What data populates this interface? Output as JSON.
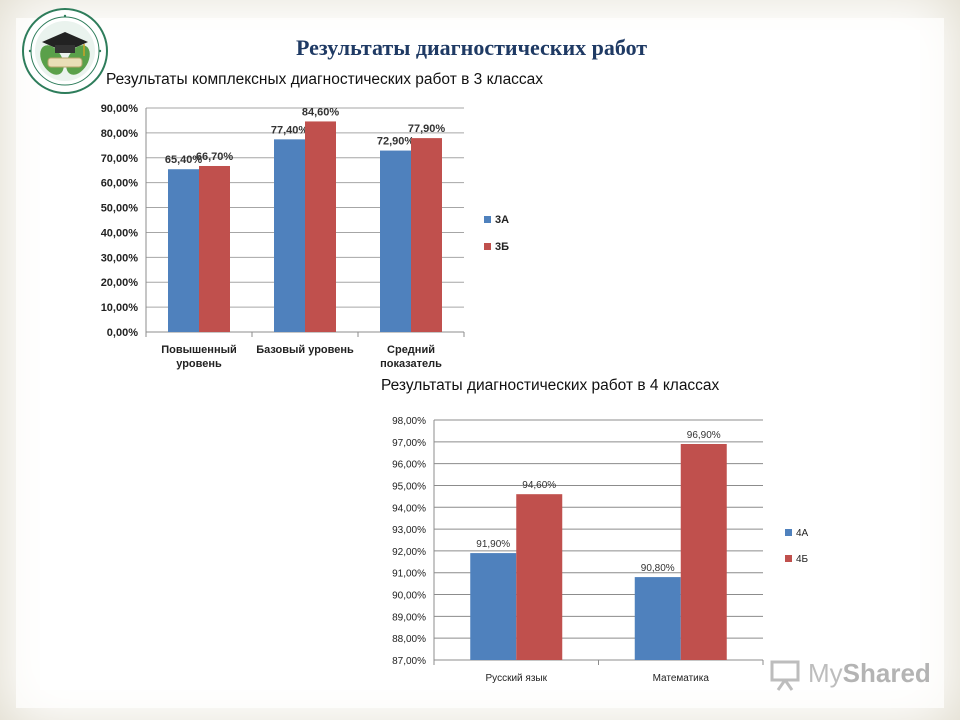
{
  "slide": {
    "title": "Результаты диагностических работ"
  },
  "watermark": {
    "text_my": "My",
    "text_shared": "Shared"
  },
  "colors": {
    "series_a": "#4f81bd",
    "series_b": "#c0504d",
    "title": "#1f3a64"
  },
  "chart_data": [
    {
      "type": "bar",
      "title": "Результаты комплексных диагностических работ в 3 классах",
      "categories": [
        [
          "Повышенный",
          "уровень"
        ],
        [
          "Базовый уровень"
        ],
        [
          "Средний",
          "показатель"
        ]
      ],
      "series": [
        {
          "name": "3А",
          "values": [
            65.4,
            77.4,
            72.9
          ],
          "labels": [
            "65,40%",
            "77,40%",
            "72,90%"
          ]
        },
        {
          "name": "3Б",
          "values": [
            66.7,
            84.6,
            77.9
          ],
          "labels": [
            "66,70%",
            "84,60%",
            "77,90%"
          ]
        }
      ],
      "ylim": [
        0,
        90
      ],
      "yticks": [
        "0,00%",
        "10,00%",
        "20,00%",
        "30,00%",
        "40,00%",
        "50,00%",
        "60,00%",
        "70,00%",
        "80,00%",
        "90,00%"
      ],
      "grid": true,
      "legend": "right"
    },
    {
      "type": "bar",
      "title": "Результаты диагностических работ в 4 классах",
      "categories": [
        [
          "Русский язык"
        ],
        [
          "Математика"
        ]
      ],
      "series": [
        {
          "name": "4А",
          "values": [
            91.9,
            90.8
          ],
          "labels": [
            "91,90%",
            "90,80%"
          ]
        },
        {
          "name": "4Б",
          "values": [
            94.6,
            96.9
          ],
          "labels": [
            "94,60%",
            "96,90%"
          ]
        }
      ],
      "ylim": [
        87,
        98
      ],
      "yticks": [
        "87,00%",
        "88,00%",
        "89,00%",
        "90,00%",
        "91,00%",
        "92,00%",
        "93,00%",
        "94,00%",
        "95,00%",
        "96,00%",
        "97,00%",
        "98,00%"
      ],
      "grid": true,
      "legend": "right"
    }
  ]
}
